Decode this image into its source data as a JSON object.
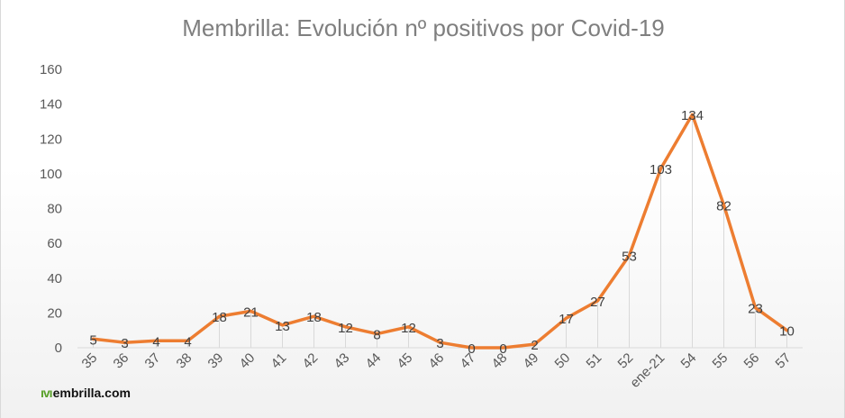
{
  "chart_data": {
    "type": "line",
    "title": "Membrilla: Evolución nº positivos por Covid-19",
    "categories": [
      "35",
      "36",
      "37",
      "38",
      "39",
      "40",
      "41",
      "42",
      "43",
      "44",
      "45",
      "46",
      "47",
      "48",
      "49",
      "50",
      "51",
      "52",
      "ene-21",
      "54",
      "55",
      "56",
      "57"
    ],
    "series": [
      {
        "values": [
          5,
          3,
          4,
          4,
          18,
          21,
          13,
          18,
          12,
          8,
          12,
          3,
          0,
          0,
          2,
          17,
          27,
          53,
          103,
          134,
          82,
          23,
          10
        ]
      }
    ],
    "ylim": [
      0,
      160
    ],
    "yticks": [
      0,
      20,
      40,
      60,
      80,
      100,
      120,
      140,
      160
    ],
    "data_labels": true,
    "grid": false,
    "drop_lines": true,
    "legend": "none",
    "colors": {
      "line": "#ED7D31",
      "axis_text": "#595959",
      "drop_line": "#d9d9d9"
    }
  },
  "logo": {
    "mark": "ıvı",
    "text": "embrilla.com"
  }
}
